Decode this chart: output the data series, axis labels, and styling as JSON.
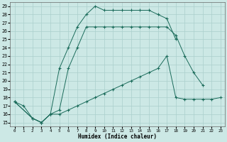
{
  "bg_color": "#cce8e5",
  "grid_color": "#aacfcc",
  "line_color": "#1a6b5a",
  "xlabel": "Humidex (Indice chaleur)",
  "xlim": [
    -0.5,
    23.5
  ],
  "ylim": [
    14.5,
    29.5
  ],
  "xticks": [
    0,
    1,
    2,
    3,
    4,
    5,
    6,
    7,
    8,
    9,
    10,
    11,
    12,
    13,
    14,
    15,
    16,
    17,
    18,
    19,
    20,
    21,
    22,
    23
  ],
  "yticks": [
    15,
    16,
    17,
    18,
    19,
    20,
    21,
    22,
    23,
    24,
    25,
    26,
    27,
    28,
    29
  ],
  "line1_x": [
    0,
    1,
    2,
    3,
    4,
    5,
    6,
    7,
    8,
    9,
    10,
    11,
    12,
    13,
    14,
    15,
    16,
    17,
    18
  ],
  "line1_y": [
    17.5,
    17.0,
    15.5,
    15.0,
    16.0,
    21.5,
    24.0,
    26.5,
    28.0,
    29.0,
    28.5,
    28.5,
    28.5,
    28.5,
    28.5,
    28.5,
    28.0,
    27.5,
    25.0
  ],
  "line2_x": [
    0,
    2,
    3,
    4,
    5,
    6,
    7,
    8,
    9,
    10,
    11,
    12,
    13,
    14,
    15,
    16,
    17,
    18,
    19,
    20,
    21
  ],
  "line2_y": [
    17.5,
    15.5,
    15.0,
    16.0,
    16.5,
    21.5,
    24.0,
    26.5,
    26.5,
    26.5,
    26.5,
    26.5,
    26.5,
    26.5,
    26.5,
    26.5,
    26.5,
    25.5,
    23.0,
    21.0,
    19.5
  ],
  "line3_x": [
    0,
    2,
    3,
    4,
    5,
    6,
    7,
    8,
    9,
    10,
    11,
    12,
    13,
    14,
    15,
    16,
    17,
    18,
    19,
    20,
    21,
    22,
    23
  ],
  "line3_y": [
    17.5,
    15.5,
    15.0,
    16.0,
    16.0,
    16.5,
    17.0,
    17.5,
    18.0,
    18.5,
    19.0,
    19.5,
    20.0,
    20.5,
    21.0,
    21.5,
    23.0,
    18.0,
    17.8,
    17.8,
    17.8,
    17.8,
    18.0
  ]
}
